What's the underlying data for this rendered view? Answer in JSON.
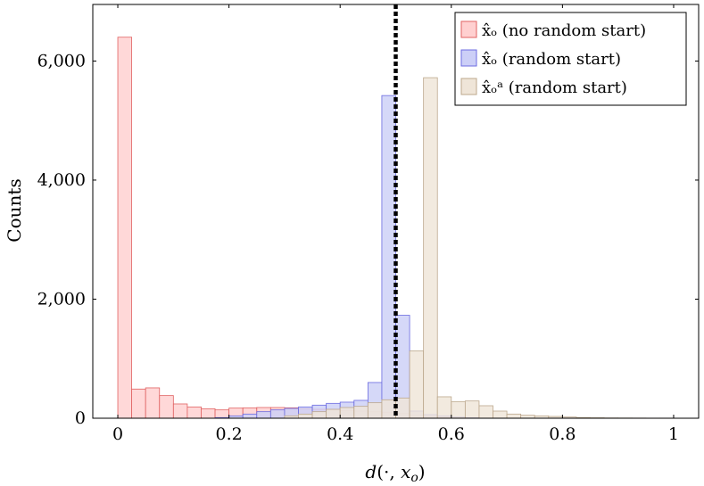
{
  "chart_data": {
    "type": "bar",
    "subtype": "histogram",
    "title": "",
    "xlabel": "d(·, xₒ)",
    "ylabel": "Counts",
    "xlim": [
      -0.045,
      1.045
    ],
    "ylim": [
      0,
      6950
    ],
    "bin_width": 0.025,
    "x_ticks": [
      0,
      0.2,
      0.4,
      0.6,
      0.8,
      1
    ],
    "x_tick_labels": [
      "0",
      "0.2",
      "0.4",
      "0.6",
      "0.8",
      "1"
    ],
    "y_ticks": [
      0,
      2000,
      4000,
      6000
    ],
    "y_tick_labels": [
      "0",
      "2,000",
      "4,000",
      "6,000"
    ],
    "threshold_line": {
      "x": 0.5,
      "style": "dotted",
      "color": "#000000"
    },
    "legend_position": "top-right",
    "series": [
      {
        "name": "x̂ₒ (no random start)",
        "fill": "#ffd0d0",
        "stroke": "#e06262",
        "bins": [
          [
            0.0,
            6400
          ],
          [
            0.025,
            490
          ],
          [
            0.05,
            510
          ],
          [
            0.075,
            380
          ],
          [
            0.1,
            240
          ],
          [
            0.125,
            190
          ],
          [
            0.15,
            160
          ],
          [
            0.175,
            140
          ],
          [
            0.2,
            170
          ],
          [
            0.225,
            175
          ],
          [
            0.25,
            180
          ],
          [
            0.275,
            180
          ],
          [
            0.3,
            175
          ],
          [
            0.325,
            160
          ],
          [
            0.35,
            150
          ],
          [
            0.375,
            140
          ],
          [
            0.4,
            130
          ],
          [
            0.425,
            120
          ],
          [
            0.45,
            110
          ],
          [
            0.475,
            100
          ],
          [
            0.5,
            80
          ],
          [
            0.525,
            50
          ],
          [
            0.55,
            30
          ],
          [
            0.575,
            20
          ],
          [
            0.6,
            10
          ],
          [
            0.625,
            5
          ]
        ]
      },
      {
        "name": "x̂ₒ (random start)",
        "fill": "#cccff7",
        "stroke": "#6b6be0",
        "bins": [
          [
            0.175,
            10
          ],
          [
            0.2,
            40
          ],
          [
            0.225,
            70
          ],
          [
            0.25,
            110
          ],
          [
            0.275,
            140
          ],
          [
            0.3,
            165
          ],
          [
            0.325,
            190
          ],
          [
            0.35,
            220
          ],
          [
            0.375,
            250
          ],
          [
            0.4,
            270
          ],
          [
            0.425,
            300
          ],
          [
            0.45,
            600
          ],
          [
            0.475,
            5420
          ],
          [
            0.5,
            1730
          ],
          [
            0.525,
            120
          ],
          [
            0.55,
            60
          ],
          [
            0.575,
            40
          ],
          [
            0.6,
            20
          ],
          [
            0.625,
            10
          ]
        ]
      },
      {
        "name": "x̂ₒᵃ (random start)",
        "fill": "#efe5d8",
        "stroke": "#bca88d",
        "bins": [
          [
            0.3,
            40
          ],
          [
            0.325,
            70
          ],
          [
            0.35,
            110
          ],
          [
            0.375,
            150
          ],
          [
            0.4,
            180
          ],
          [
            0.425,
            200
          ],
          [
            0.45,
            260
          ],
          [
            0.475,
            310
          ],
          [
            0.5,
            340
          ],
          [
            0.525,
            1130
          ],
          [
            0.55,
            5720
          ],
          [
            0.575,
            360
          ],
          [
            0.6,
            280
          ],
          [
            0.625,
            290
          ],
          [
            0.65,
            210
          ],
          [
            0.675,
            120
          ],
          [
            0.7,
            70
          ],
          [
            0.725,
            50
          ],
          [
            0.75,
            40
          ],
          [
            0.775,
            30
          ],
          [
            0.8,
            20
          ],
          [
            0.825,
            12
          ],
          [
            0.85,
            8
          ],
          [
            0.875,
            5
          ],
          [
            0.9,
            4
          ],
          [
            0.925,
            3
          ],
          [
            0.95,
            2
          ],
          [
            0.975,
            2
          ]
        ]
      }
    ]
  }
}
